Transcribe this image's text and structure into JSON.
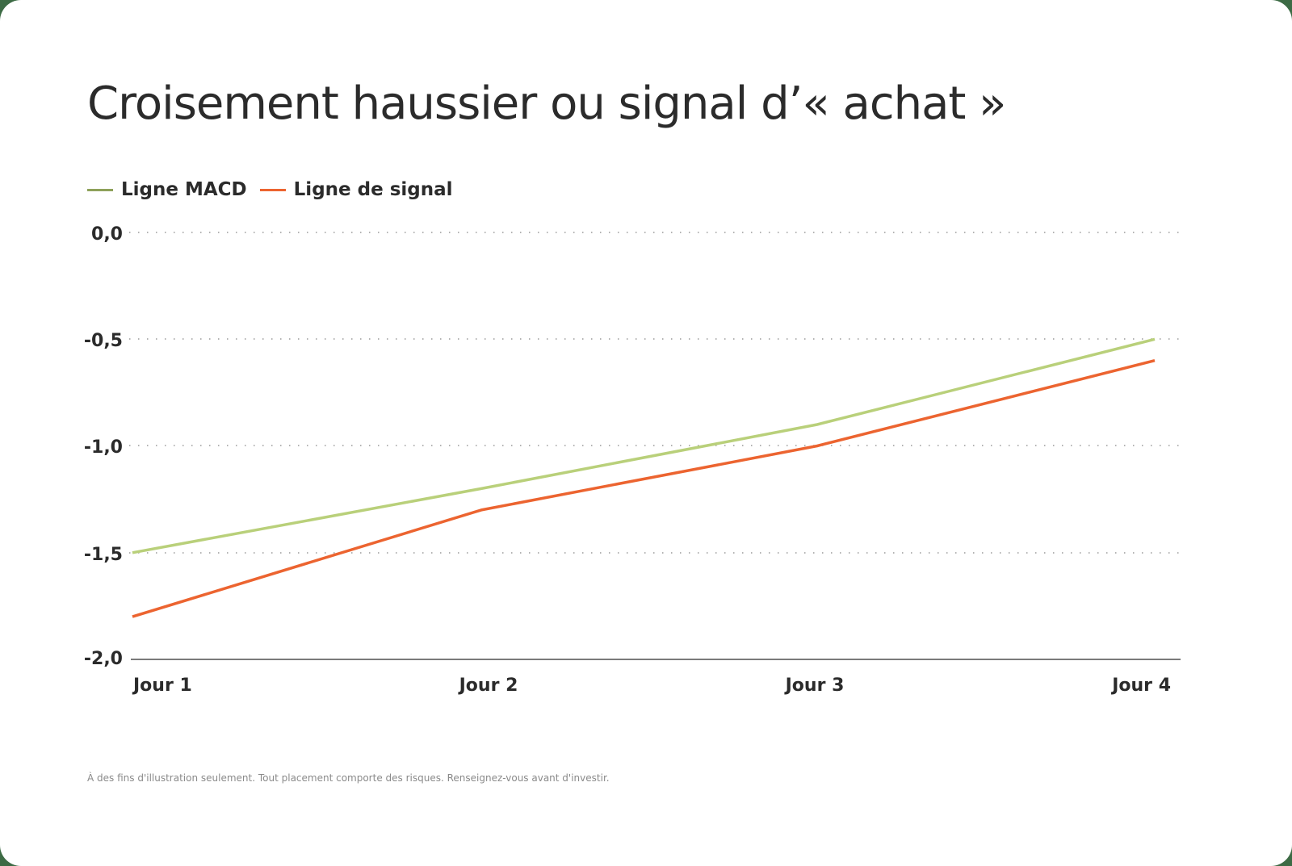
{
  "title": "Croisement haussier ou signal d’« achat »",
  "legend": [
    {
      "label": "Ligne MACD",
      "color": "#8ea15a"
    },
    {
      "label": "Ligne de signal",
      "color": "#ec6430"
    }
  ],
  "footnote": "À des fins d'illustration seulement. Tout placement comporte des risques. Renseignez-vous avant d'investir.",
  "colors": {
    "macd_line": "#b9d07a",
    "signal_line": "#ec6430",
    "background": "#3d6b45",
    "card": "#ffffff"
  },
  "chart_data": {
    "type": "line",
    "title": "Croisement haussier ou signal d’« achat »",
    "categories": [
      "Jour 1",
      "Jour 2",
      "Jour 3",
      "Jour 4"
    ],
    "series": [
      {
        "name": "Ligne MACD",
        "values": [
          -1.5,
          -1.2,
          -0.9,
          -0.5
        ]
      },
      {
        "name": "Ligne de signal",
        "values": [
          -1.8,
          -1.3,
          -1.0,
          -0.6
        ]
      }
    ],
    "yticks": [
      "0,0",
      "-0,5",
      "-1,0",
      "-1,5",
      "-2,0"
    ],
    "ylim": [
      -2.0,
      0.0
    ],
    "xlabel": "",
    "ylabel": "",
    "grid": "dotted horizontal",
    "legend_position": "top-left"
  }
}
